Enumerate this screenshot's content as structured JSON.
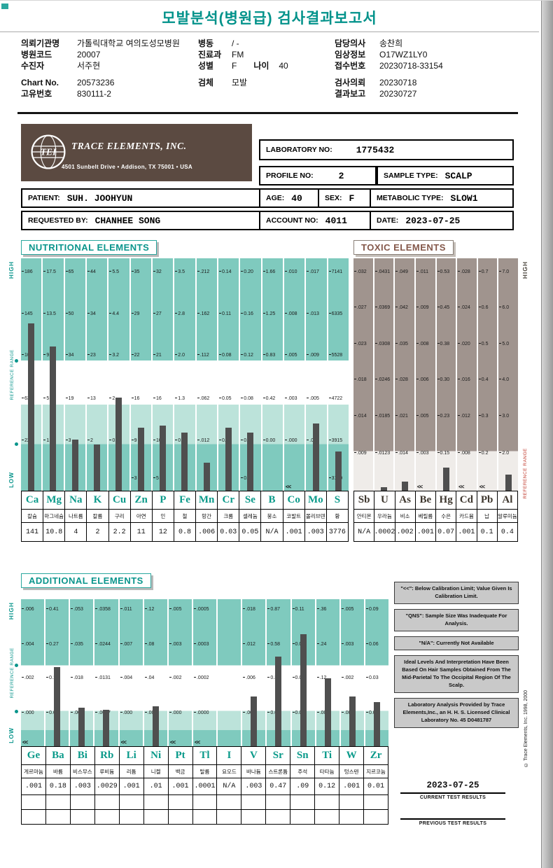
{
  "page": {
    "title": "모발분석(병원급) 검사결과보고서",
    "copyright": "© Trace Elements, Inc. 1998, 2000"
  },
  "patient_info": {
    "col1": [
      {
        "label": "의뢰기관명",
        "value": "가톨릭대학교 여의도성모병원"
      },
      {
        "label": "병원코드",
        "value": "20007"
      },
      {
        "label": "수진자",
        "value": "서주현"
      },
      {
        "label": "Chart No.",
        "value": "20573236",
        "gap": true
      },
      {
        "label": "고유번호",
        "value": "830111-2"
      }
    ],
    "col2": [
      {
        "label": "병동",
        "value": "/ -"
      },
      {
        "label": "진료과",
        "value": "FM"
      },
      {
        "label": "성별",
        "value": "F",
        "label2": "나이",
        "value2": "40"
      },
      {
        "label": "검체",
        "value": "모발",
        "gap": true
      }
    ],
    "col3": [
      {
        "label": "담당의사",
        "value": "송찬희"
      },
      {
        "label": "임상정보",
        "value": "O17WZ1LY0"
      },
      {
        "label": "접수번호",
        "value": "20230718-33154"
      },
      {
        "label": "검사의뢰",
        "value": "20230718",
        "gap": true
      },
      {
        "label": "결과보고",
        "value": "20230727"
      }
    ]
  },
  "lab": {
    "logo": "TEI",
    "company": "TRACE ELEMENTS, INC.",
    "address": "4501 Sunbelt Drive  •  Addison, TX 75001  •  USA",
    "laboratory_no_label": "LABORATORY NO:",
    "laboratory_no": "1775432",
    "profile_no_label": "PROFILE NO:",
    "profile_no": "2",
    "sample_type_label": "SAMPLE TYPE:",
    "sample_type": "SCALP",
    "patient_label": "PATIENT:",
    "patient": "SUH. JOOHYUN",
    "age_label": "AGE:",
    "age": "40",
    "sex_label": "SEX:",
    "sex": "F",
    "metabolic_label": "METABOLIC TYPE:",
    "metabolic": "SLOW1",
    "requested_label": "REQUESTED BY:",
    "requested": "CHANHEE SONG",
    "account_label": "ACCOUNT NO:",
    "account": "4011",
    "date_label": "DATE:",
    "date": "2023-07-25"
  },
  "chart_data": [
    {
      "type": "bar",
      "title": "NUTRITIONAL ELEMENTS",
      "side_labels": {
        "high": "HIGH",
        "ref": "REFERENCE RANGE",
        "low": "LOW"
      },
      "elements": [
        {
          "symbol": "Ca",
          "name_ko": "칼슘",
          "value": "141",
          "scale": [
            "186",
            "145",
            "104",
            "63",
            "22"
          ],
          "bar_pct": 72
        },
        {
          "symbol": "Mg",
          "name_ko": "마그네슘",
          "value": "10.8",
          "scale": [
            "17.5",
            "13.5",
            "9.4",
            "5",
            "1.3"
          ],
          "bar_pct": 62
        },
        {
          "symbol": "Na",
          "name_ko": "나트륨",
          "value": "4",
          "scale": [
            "65",
            "50",
            "34",
            "19",
            "3"
          ],
          "bar_pct": 22
        },
        {
          "symbol": "K",
          "name_ko": "칼륨",
          "value": "2",
          "scale": [
            "44",
            "34",
            "23",
            "13",
            "2"
          ],
          "bar_pct": 20
        },
        {
          "symbol": "Cu",
          "name_ko": "구리",
          "value": "2.2",
          "scale": [
            "5.5",
            "4.4",
            "3.2",
            "2",
            "0.9"
          ],
          "bar_pct": 40
        },
        {
          "symbol": "Zn",
          "name_ko": "아연",
          "value": "11",
          "scale": [
            "35",
            "29",
            "22",
            "16",
            "9"
          ],
          "scale_extra": "3",
          "bar_pct": 27
        },
        {
          "symbol": "P",
          "name_ko": "인",
          "value": "12",
          "scale": [
            "32",
            "27",
            "21",
            "16",
            "10"
          ],
          "scale_extra": "5",
          "bar_pct": 28
        },
        {
          "symbol": "Fe",
          "name_ko": "철",
          "value": "0.8",
          "scale": [
            "3.5",
            "2.8",
            "2.0",
            "1.3",
            "0.5"
          ],
          "bar_pct": 25
        },
        {
          "symbol": "Mn",
          "name_ko": "망간",
          "value": ".006",
          "scale": [
            ".212",
            ".162",
            ".112",
            ".062",
            ".012"
          ],
          "bar_pct": 12
        },
        {
          "symbol": "Cr",
          "name_ko": "크롬",
          "value": "0.03",
          "scale": [
            "0.14",
            "0.11",
            "0.08",
            "0.05",
            "0.02"
          ],
          "bar_pct": 27
        },
        {
          "symbol": "Se",
          "name_ko": "셀레늄",
          "value": "0.05",
          "scale": [
            "0.20",
            "0.16",
            "0.12",
            "0.08",
            "0.04"
          ],
          "scale_extra": "0.00",
          "bar_pct": 25
        },
        {
          "symbol": "B",
          "name_ko": "붕소",
          "value": "N/A",
          "scale": [
            "1.66",
            "1.25",
            "0.83",
            "0.42",
            "0.00"
          ],
          "bar_pct": 0
        },
        {
          "symbol": "Co",
          "name_ko": "코발트",
          "value": ".001",
          "scale": [
            ".010",
            ".008",
            ".005",
            ".003",
            ".000"
          ],
          "bar_pct": 0,
          "marker": "<<"
        },
        {
          "symbol": "Mo",
          "name_ko": "몰리브덴",
          "value": ".003",
          "scale": [
            ".017",
            ".013",
            ".009",
            ".005",
            ".001"
          ],
          "bar_pct": 29
        },
        {
          "symbol": "S",
          "name_ko": "황",
          "value": "3776",
          "scale": [
            "7141",
            "6335",
            "5528",
            "4722",
            "3915"
          ],
          "scale_extra": "3109",
          "bar_pct": 17
        }
      ]
    },
    {
      "type": "bar",
      "title": "TOXIC ELEMENTS",
      "side_labels": {
        "high": "HIGH",
        "ref": "REFERENCE RANGE"
      },
      "elements": [
        {
          "symbol": "Sb",
          "name_ko": "안티몬",
          "value": "N/A",
          "scale": [
            ".032",
            ".027",
            ".023",
            ".018",
            ".014",
            ".009"
          ],
          "bar_pct": 0
        },
        {
          "symbol": "U",
          "name_ko": "우라늄",
          "value": ".0002",
          "scale": [
            ".0431",
            ".0369",
            ".0308",
            ".0246",
            ".0185",
            ".0123"
          ],
          "bar_pct": 1.5
        },
        {
          "symbol": "As",
          "name_ko": "비소",
          "value": ".002",
          "scale": [
            ".049",
            ".042",
            ".035",
            ".028",
            ".021",
            ".014"
          ],
          "bar_pct": 4
        },
        {
          "symbol": "Be",
          "name_ko": "베릴륨",
          "value": ".001",
          "scale": [
            ".011",
            ".009",
            ".008",
            ".006",
            ".005",
            ".003"
          ],
          "bar_pct": 0,
          "marker": "<<"
        },
        {
          "symbol": "Hg",
          "name_ko": "수은",
          "value": "0.07",
          "scale": [
            "0.53",
            "0.45",
            "0.38",
            "0.30",
            "0.23",
            "0.15"
          ],
          "bar_pct": 10
        },
        {
          "symbol": "Cd",
          "name_ko": "카드뮴",
          "value": ".001",
          "scale": [
            ".028",
            ".024",
            ".020",
            ".016",
            ".012",
            ".008"
          ],
          "bar_pct": 0,
          "marker": "<<"
        },
        {
          "symbol": "Pb",
          "name_ko": "납",
          "value": "0.1",
          "scale": [
            "0.7",
            "0.6",
            "0.5",
            "0.4",
            "0.3",
            "0.2"
          ],
          "bar_pct": 0,
          "marker": "<<"
        },
        {
          "symbol": "Al",
          "name_ko": "알루미늄",
          "value": "0.4",
          "scale": [
            "7.0",
            "6.0",
            "5.0",
            "4.0",
            "3.0",
            "2.0"
          ],
          "bar_pct": 7
        }
      ]
    },
    {
      "type": "bar",
      "title": "ADDITIONAL ELEMENTS",
      "side_labels": {
        "high": "HIGH",
        "ref": "REFERENCE RANGE",
        "low": "LOW"
      },
      "elements": [
        {
          "symbol": "Ge",
          "name_ko": "게르마늄",
          "value": ".001",
          "scale": [
            ".006",
            ".004",
            ".002",
            ".000"
          ],
          "bar_pct": 0,
          "marker": "<<"
        },
        {
          "symbol": "Ba",
          "name_ko": "바륨",
          "value": "0.18",
          "scale": [
            "0.41",
            "0.27",
            "0.14",
            "0.00"
          ],
          "bar_pct": 54
        },
        {
          "symbol": "Bi",
          "name_ko": "비스무스",
          "value": ".003",
          "scale": [
            ".053",
            ".035",
            ".018",
            ".000"
          ],
          "bar_pct": 26
        },
        {
          "symbol": "Rb",
          "name_ko": "루비듐",
          "value": ".0029",
          "scale": [
            ".0358",
            ".0244",
            ".0131",
            ".0017"
          ],
          "bar_pct": 25
        },
        {
          "symbol": "Li",
          "name_ko": "리튬",
          "value": ".001",
          "scale": [
            ".011",
            ".007",
            ".004",
            ".000"
          ],
          "bar_pct": 0,
          "marker": "<<"
        },
        {
          "symbol": "Ni",
          "name_ko": "니켈",
          "value": ".01",
          "scale": [
            ".12",
            ".08",
            ".04",
            ".00"
          ],
          "bar_pct": 27
        },
        {
          "symbol": "Pt",
          "name_ko": "백금",
          "value": ".001",
          "scale": [
            ".005",
            ".003",
            ".002",
            ".000"
          ],
          "bar_pct": 0,
          "marker": "<<"
        },
        {
          "symbol": "Tl",
          "name_ko": "탈륨",
          "value": ".0001",
          "scale": [
            ".0005",
            ".0003",
            ".0002",
            ".0000"
          ],
          "bar_pct": 0,
          "marker": "<<"
        },
        {
          "symbol": "I",
          "name_ko": "요오드",
          "value": "N/A",
          "scale": [],
          "bar_pct": 0
        },
        {
          "symbol": "V",
          "name_ko": "바나듐",
          "value": ".003",
          "scale": [
            ".018",
            ".012",
            ".006",
            ".000"
          ],
          "bar_pct": 34
        },
        {
          "symbol": "Sr",
          "name_ko": "스트론튬",
          "value": "0.47",
          "scale": [
            "0.87",
            "0.58",
            "0.30",
            "0.00"
          ],
          "bar_pct": 61
        },
        {
          "symbol": "Sn",
          "name_ko": "주석",
          "value": ".09",
          "scale": [
            "0.11",
            "0.07",
            "0.04",
            "0.00"
          ],
          "bar_pct": 76
        },
        {
          "symbol": "Ti",
          "name_ko": "타타늄",
          "value": "0.12",
          "scale": [
            ".36",
            ".24",
            ".12",
            ".00"
          ],
          "bar_pct": 46
        },
        {
          "symbol": "W",
          "name_ko": "텅스텐",
          "value": ".001",
          "scale": [
            ".005",
            ".003",
            ".002",
            ".000"
          ],
          "bar_pct": 34
        },
        {
          "symbol": "Zr",
          "name_ko": "지르코늄",
          "value": "0.01",
          "scale": [
            "0.09",
            "0.06",
            "0.03",
            "0.00"
          ],
          "bar_pct": 30
        }
      ]
    }
  ],
  "notes": [
    "\"<<\": Below Calibration Limit; Value Given Is Calibration Limit.",
    "\"QNS\": Sample Size Was Inadequate For Analysis.",
    "\"N/A\": Currently Not Available",
    "Ideal Levels And Interpretation Have Been Based On Hair Samples Obtained From The Mid-Parietal To The Occipital Region Of The Scalp.",
    "Laboratory Analysis Provided by Trace Elements,Inc., an H. H. S. Licensed Clinical Laboratory No. 45 D0481787"
  ],
  "results_footer": {
    "current_date": "2023-07-25",
    "current_label": "CURRENT TEST RESULTS",
    "previous_label": "PREVIOUS TEST RESULTS"
  }
}
